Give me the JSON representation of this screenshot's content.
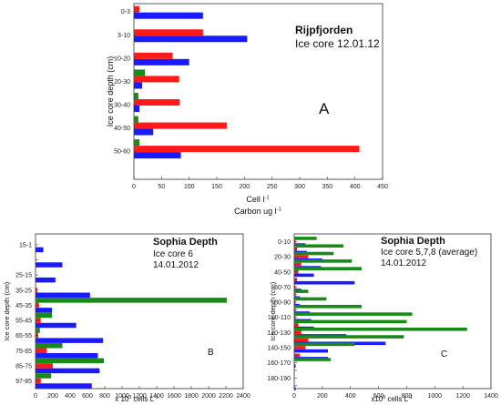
{
  "chart_data": [
    {
      "panel": "A",
      "type": "bar",
      "orientation": "horizontal",
      "title": "Rijpfjorden",
      "subtitle": "Ice core 12.01.12",
      "panel_label": "A",
      "ylabel": "Ice core depth (cm)",
      "xlabel_line1": "Cell l",
      "xlabel_line1_sup": "-1",
      "xlabel_line2": "Carbon ug l",
      "xlabel_line2_sup": "-1",
      "xlim": [
        0,
        450
      ],
      "xticks": [
        "0",
        "50",
        "100",
        "150",
        "200",
        "250",
        "300",
        "350",
        "400",
        "450"
      ],
      "categories": [
        "0-3",
        "3-10",
        "10-20",
        "20-30",
        "30-40",
        "40-50",
        "50-60"
      ],
      "series": [
        {
          "color": "#1a1aff",
          "values": [
            125,
            205,
            100,
            15,
            10,
            35,
            85
          ]
        },
        {
          "color": "#ff1a1a",
          "values": [
            10,
            125,
            70,
            82,
            83,
            168,
            408
          ]
        },
        {
          "color": "#188a18",
          "values": [
            0,
            0,
            0,
            20,
            8,
            8,
            10
          ]
        }
      ]
    },
    {
      "panel": "B",
      "type": "bar",
      "orientation": "horizontal",
      "title": "Sophia Depth",
      "subtitle1": "Ice core 6",
      "subtitle2": "14.01.2012",
      "panel_label": "B",
      "ylabel": "Ice core depth (cm)",
      "xlabel": "x 10",
      "xlabel_sup": "3",
      "xlabel_tail": " cells L",
      "xlabel_tail_sup": "-1",
      "xlim": [
        0,
        2400
      ],
      "xticks": [
        "0",
        "200",
        "400",
        "600",
        "800",
        "1000",
        "1200",
        "1400",
        "1600",
        "1800",
        "2000",
        "2200",
        "2400"
      ],
      "categories": [
        "15-1",
        "",
        "25-15",
        "35-25",
        "45-35",
        "55-45",
        "65-55",
        "75-65",
        "85-75",
        "97-85"
      ],
      "series": [
        {
          "color": "#1a1aff",
          "values": [
            90,
            310,
            230,
            630,
            190,
            470,
            780,
            720,
            740,
            650
          ]
        },
        {
          "color": "#ff1a1a",
          "values": [
            0,
            0,
            0,
            20,
            40,
            60,
            30,
            130,
            200,
            60
          ]
        },
        {
          "color": "#188a18",
          "values": [
            0,
            0,
            0,
            0,
            2210,
            190,
            50,
            310,
            790,
            180
          ]
        }
      ]
    },
    {
      "panel": "C",
      "type": "bar",
      "orientation": "horizontal",
      "title": "Sophia Depth",
      "subtitle1": "Ice core 5,7,8 (average)",
      "subtitle2": "14.01.2012",
      "panel_label": "C",
      "ylabel": "Ice core depth (cm)",
      "xlabel": "x10",
      "xlabel_sup": "3",
      "xlabel_tail": " cells L",
      "xlabel_tail_sup": "-1",
      "xlim": [
        0,
        1400
      ],
      "xticks": [
        "0",
        "200",
        "400",
        "600",
        "800",
        "1000",
        "1200",
        "1400"
      ],
      "categories": [
        "0-10",
        "",
        "20-30",
        "",
        "40-50",
        "",
        "60-70",
        "",
        "80-90",
        "",
        "100-110",
        "",
        "120-130",
        "",
        "140-150",
        "",
        "160-170",
        "",
        "180-190",
        ""
      ],
      "series": [
        {
          "color": "#1a1aff",
          "values": [
            80,
            90,
            200,
            190,
            140,
            430,
            50,
            40,
            40,
            110,
            120,
            140,
            370,
            650,
            240,
            240,
            10,
            0,
            0,
            10
          ]
        },
        {
          "color": "#ff1a1a",
          "values": [
            10,
            20,
            100,
            50,
            30,
            20,
            10,
            10,
            10,
            10,
            10,
            30,
            50,
            100,
            80,
            40,
            0,
            0,
            0,
            0
          ]
        },
        {
          "color": "#188a18",
          "values": [
            160,
            350,
            280,
            410,
            480,
            0,
            0,
            100,
            230,
            480,
            840,
            800,
            1230,
            780,
            430,
            0,
            260,
            0,
            0,
            0
          ]
        }
      ]
    }
  ]
}
